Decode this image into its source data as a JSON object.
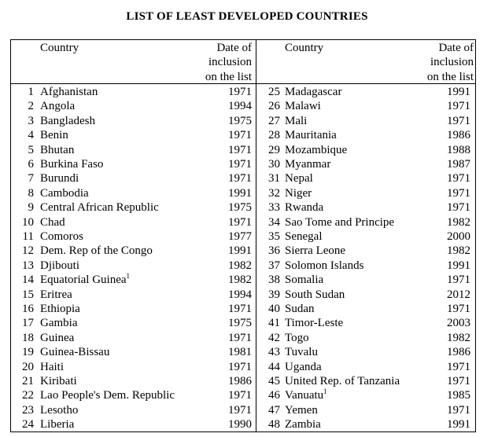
{
  "title": "LIST OF LEAST DEVELOPED COUNTRIES",
  "headers": {
    "country": "Country",
    "date": [
      "Date of",
      "inclusion",
      "on the list"
    ]
  },
  "left": [
    {
      "n": "1",
      "c": "Afghanistan",
      "y": "1971"
    },
    {
      "n": "2",
      "c": "Angola",
      "y": "1994"
    },
    {
      "n": "3",
      "c": "Bangladesh",
      "y": "1975"
    },
    {
      "n": "4",
      "c": "Benin",
      "y": "1971"
    },
    {
      "n": "5",
      "c": "Bhutan",
      "y": "1971"
    },
    {
      "n": "6",
      "c": "Burkina Faso",
      "y": "1971"
    },
    {
      "n": "7",
      "c": "Burundi",
      "y": "1971"
    },
    {
      "n": "8",
      "c": "Cambodia",
      "y": "1991"
    },
    {
      "n": "9",
      "c": "Central African Republic",
      "y": "1975"
    },
    {
      "n": "10",
      "c": "Chad",
      "y": "1971"
    },
    {
      "n": "11",
      "c": "Comoros",
      "y": "1977"
    },
    {
      "n": "12",
      "c": "Dem. Rep of the Congo",
      "y": "1991"
    },
    {
      "n": "13",
      "c": "Djibouti",
      "y": "1982"
    },
    {
      "n": "14",
      "c": "Equatorial Guinea",
      "sup": "1",
      "y": "1982"
    },
    {
      "n": "15",
      "c": "Eritrea",
      "y": "1994"
    },
    {
      "n": "16",
      "c": "Ethiopia",
      "y": "1971"
    },
    {
      "n": "17",
      "c": "Gambia",
      "y": "1975"
    },
    {
      "n": "18",
      "c": "Guinea",
      "y": "1971"
    },
    {
      "n": "19",
      "c": "Guinea-Bissau",
      "y": "1981"
    },
    {
      "n": "20",
      "c": "Haiti",
      "y": "1971"
    },
    {
      "n": "21",
      "c": "Kiribati",
      "y": "1986"
    },
    {
      "n": "22",
      "c": "Lao People's Dem. Republic",
      "y": "1971"
    },
    {
      "n": "23",
      "c": "Lesotho",
      "y": "1971"
    },
    {
      "n": "24",
      "c": "Liberia",
      "y": "1990"
    }
  ],
  "right": [
    {
      "n": "25",
      "c": "Madagascar",
      "y": "1991"
    },
    {
      "n": "26",
      "c": "Malawi",
      "y": "1971"
    },
    {
      "n": "27",
      "c": "Mali",
      "y": "1971"
    },
    {
      "n": "28",
      "c": "Mauritania",
      "y": "1986"
    },
    {
      "n": "29",
      "c": "Mozambique",
      "y": "1988"
    },
    {
      "n": "30",
      "c": "Myanmar",
      "y": "1987"
    },
    {
      "n": "31",
      "c": "Nepal",
      "y": "1971"
    },
    {
      "n": "32",
      "c": "Niger",
      "y": "1971"
    },
    {
      "n": "33",
      "c": "Rwanda",
      "y": "1971"
    },
    {
      "n": "34",
      "c": "Sao Tome and Principe",
      "y": "1982"
    },
    {
      "n": "35",
      "c": "Senegal",
      "y": "2000"
    },
    {
      "n": "36",
      "c": "Sierra Leone",
      "y": "1982"
    },
    {
      "n": "37",
      "c": "Solomon Islands",
      "y": "1991"
    },
    {
      "n": "38",
      "c": "Somalia",
      "y": "1971"
    },
    {
      "n": "39",
      "c": "South Sudan",
      "y": "2012"
    },
    {
      "n": "40",
      "c": "Sudan",
      "y": "1971"
    },
    {
      "n": "41",
      "c": "Timor-Leste",
      "y": "2003"
    },
    {
      "n": "42",
      "c": "Togo",
      "y": "1982"
    },
    {
      "n": "43",
      "c": "Tuvalu",
      "y": "1986"
    },
    {
      "n": "44",
      "c": "Uganda",
      "y": "1971"
    },
    {
      "n": "45",
      "c": "United Rep. of Tanzania",
      "y": "1971"
    },
    {
      "n": "46",
      "c": "Vanuatu",
      "sup": "1",
      "y": "1985"
    },
    {
      "n": "47",
      "c": "Yemen",
      "y": "1971"
    },
    {
      "n": "48",
      "c": "Zambia",
      "y": "1991"
    }
  ]
}
